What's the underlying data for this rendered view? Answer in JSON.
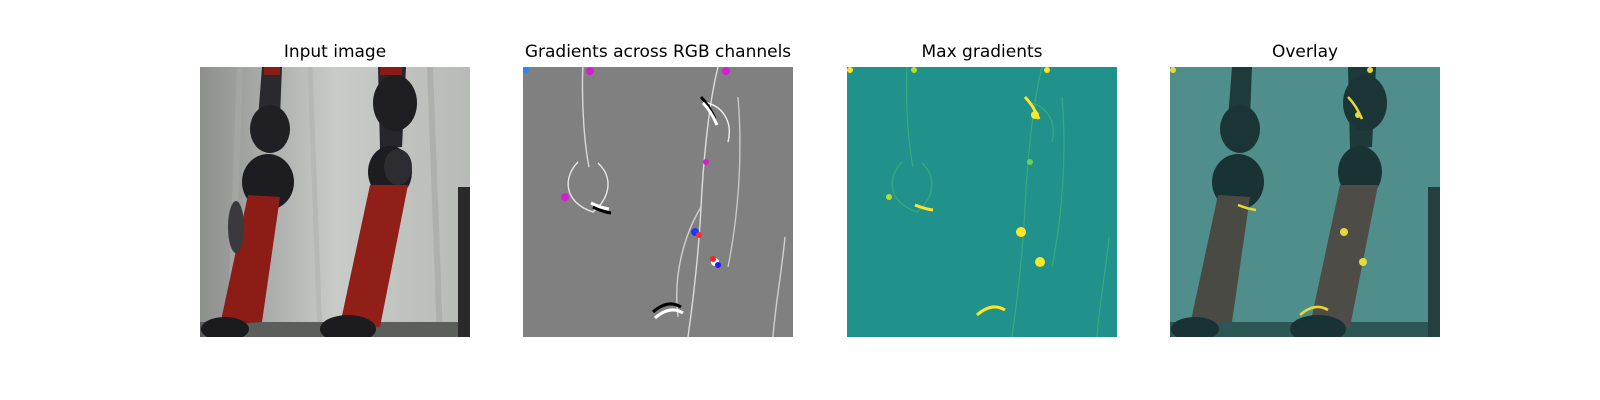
{
  "panels": [
    {
      "title": "Input image"
    },
    {
      "title": "Gradients across RGB channels"
    },
    {
      "title": "Max gradients"
    },
    {
      "title": "Overlay"
    }
  ]
}
